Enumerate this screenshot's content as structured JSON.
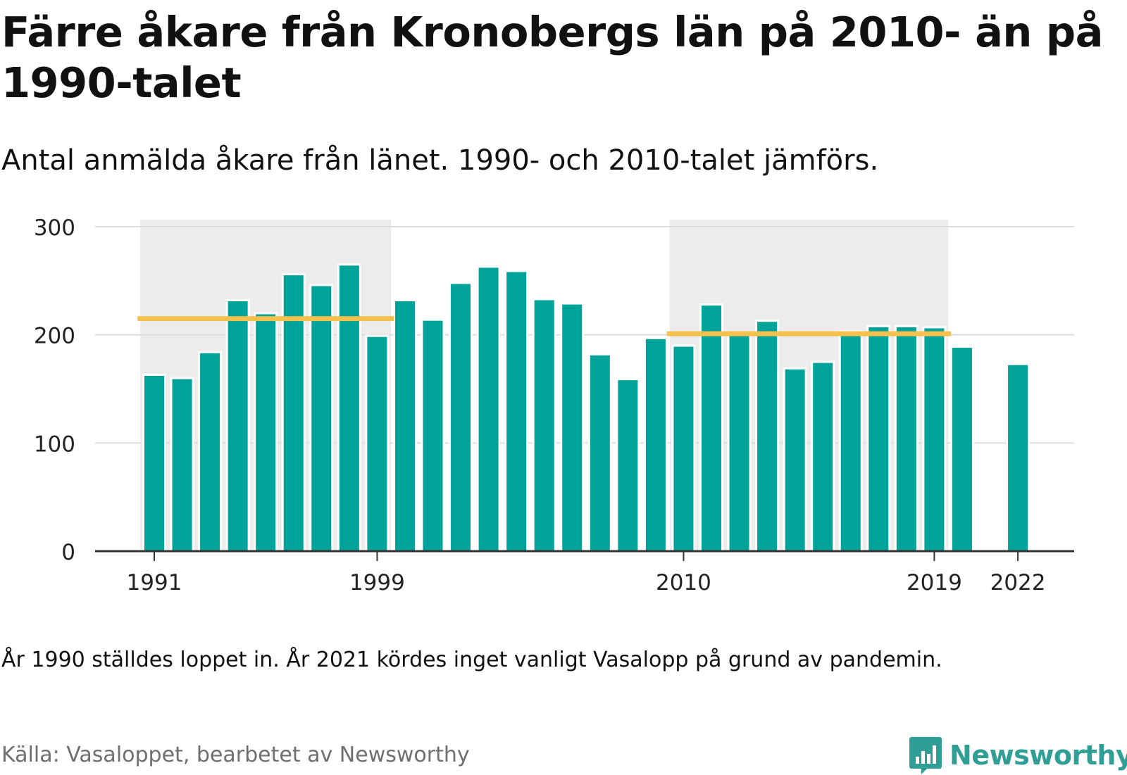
{
  "header": {
    "title": "Färre åkare från Kronobergs län på 2010- än på 1990-talet",
    "subtitle": "Antal anmälda åkare från länet. 1990- och 2010-talet jämförs."
  },
  "footer": {
    "note": "År 1990 ställdes loppet in. År 2021 kördes inget vanligt Vasalopp på grund av pandemin.",
    "source": "Källa: Vasaloppet, bearbetet av Newsworthy",
    "brand": "Newsworthy"
  },
  "colors": {
    "bar": "#00a39a",
    "average_line": "#f5c04c",
    "highlight_band": "#ececec",
    "gridline": "#dcdcdc",
    "brand": "#2f9e94"
  },
  "chart_data": {
    "type": "bar",
    "x": [
      1991,
      1992,
      1993,
      1994,
      1995,
      1996,
      1997,
      1998,
      1999,
      2000,
      2001,
      2002,
      2003,
      2004,
      2005,
      2006,
      2007,
      2008,
      2009,
      2010,
      2011,
      2012,
      2013,
      2014,
      2015,
      2016,
      2017,
      2018,
      2019,
      2020,
      2021,
      2022
    ],
    "values": [
      163,
      160,
      184,
      232,
      220,
      256,
      246,
      265,
      199,
      232,
      214,
      248,
      263,
      259,
      233,
      229,
      182,
      159,
      197,
      190,
      228,
      202,
      213,
      169,
      175,
      203,
      208,
      208,
      207,
      189,
      null,
      173
    ],
    "xticks": [
      "1991",
      "1999",
      "2010",
      "2019",
      "2022"
    ],
    "yticks": [
      "0",
      "100",
      "200",
      "300"
    ],
    "ylim": [
      0,
      300
    ],
    "highlights": [
      {
        "from": 1991,
        "to": 1999,
        "average": 215
      },
      {
        "from": 2010,
        "to": 2019,
        "average": 201
      }
    ],
    "grid": true
  }
}
